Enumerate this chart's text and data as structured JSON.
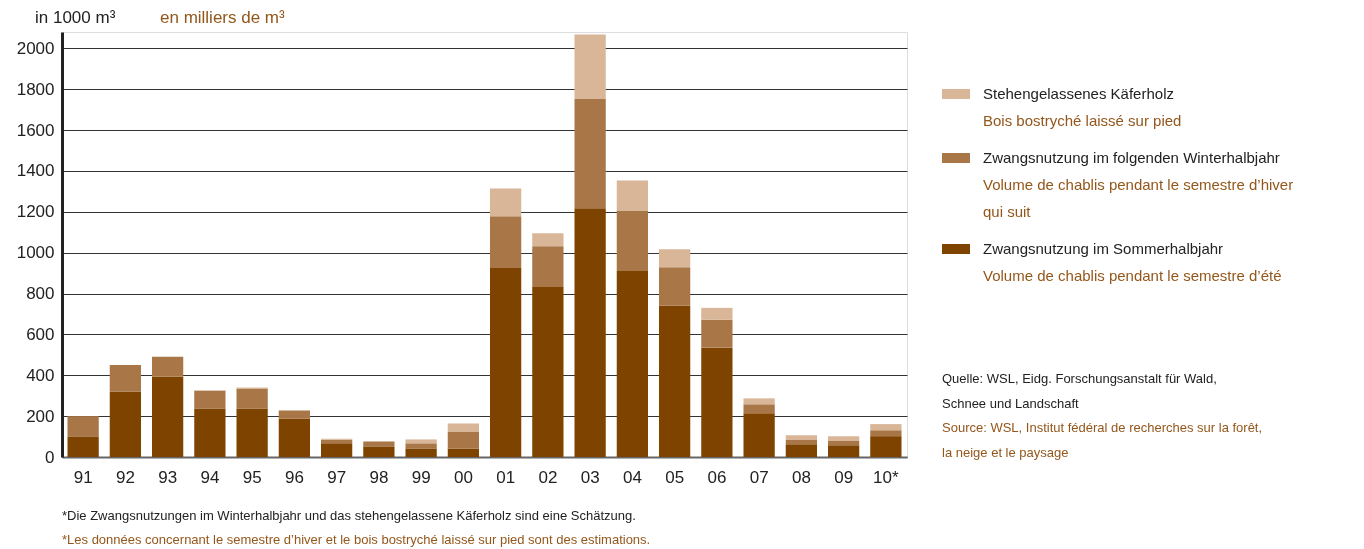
{
  "chart_data": {
    "type": "bar",
    "title": "in 1000 m³",
    "subtitle": "en milliers de m³",
    "categories": [
      "91",
      "92",
      "93",
      "94",
      "95",
      "96",
      "97",
      "98",
      "99",
      "00",
      "01",
      "02",
      "03",
      "04",
      "05",
      "06",
      "07",
      "08",
      "09",
      "10*"
    ],
    "stacked": true,
    "series": [
      {
        "name": "Zwangsnutzung im Sommerhalbjahr\nVolume de chablis pendant le semestre d’été",
        "color": "#7f4300",
        "values": [
          101,
          320,
          393,
          237,
          237,
          189,
          67,
          52,
          42,
          42,
          925,
          832,
          1217,
          910,
          740,
          535,
          214,
          63,
          58,
          102
        ]
      },
      {
        "name": "Zwangsnutzung im folgenden Winterhalbjahr\nVolume de chablis pendant le semestre d’hiver\nqui suit",
        "color": "#a97747",
        "values": [
          99,
          130,
          98,
          88,
          98,
          39,
          18,
          24,
          25,
          83,
          253,
          200,
          535,
          297,
          189,
          137,
          44,
          20,
          20,
          29
        ]
      },
      {
        "name": "Stehengelassenes Käferholz\nBois bostryché laissé sur pied",
        "color": "#d8b697",
        "values": [
          0,
          0,
          0,
          0,
          5,
          null,
          4,
          0,
          19,
          39,
          136,
          63,
          316,
          146,
          88,
          58,
          29,
          24,
          24,
          30
        ]
      }
    ],
    "ylim": [
      0,
      2080
    ],
    "yticks": [
      0,
      200,
      400,
      600,
      800,
      1000,
      1200,
      1400,
      1600,
      1800,
      2000
    ],
    "grid": "y",
    "legend": "right",
    "annotations": [
      "Quelle: WSL, Eidg. Forschungsanstalt für Wald,\nSchnee und Landschaft",
      "Source: WSL, Institut fédéral de recherches sur la forêt,\nla neige et le paysage",
      "*Die Zwangsnutzungen im Winterhalbjahr und das stehengelassene Käferholz sind eine Schätzung.",
      "*Les données concernant le semestre d’hiver et le bois bostryché laissé sur pied sont des estimations."
    ]
  }
}
